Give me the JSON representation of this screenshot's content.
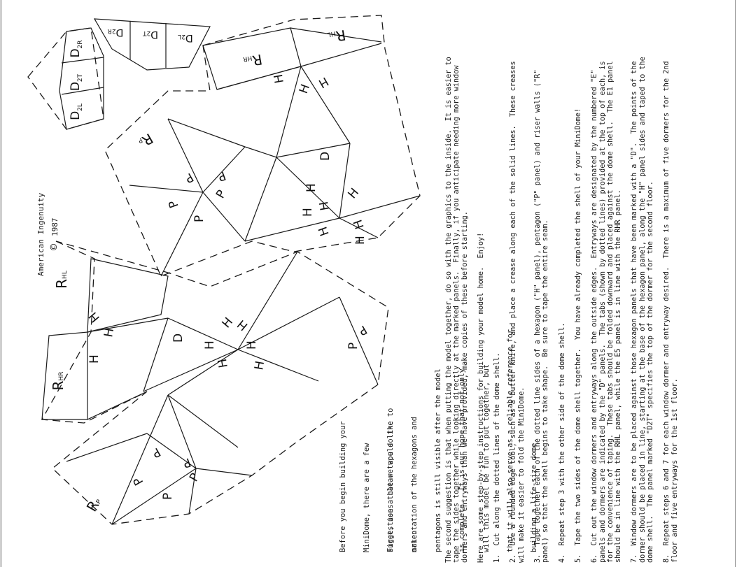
{
  "credit": {
    "company": "American Ingenuity",
    "copyright_symbol": "©",
    "year": "1987"
  },
  "intro": {
    "lines_1": [
      "Before you begin building your",
      "MiniDome, there are a few",
      "suggestions that we would like to",
      "make."
    ],
    "lines_2": [
      "First, use a clear tape so the",
      "orientation of the hexagons and",
      "pentagons is still visible after the model",
      "is complete.  It is our hope that not only",
      "will this model be fun to put together, but",
      "that it will also serve as a reliable reference for",
      "building a life-size dome."
    ]
  },
  "instructions": {
    "suggestion_2": "The second suggestion is that when putting the model together, do so with the graphics to the inside.  It is easier to\ntape the sides together while looking directly at the marked panels.  Finally, if you anticipate needing more window\ndormers and entryways than we have provided, make copies of these before starting.",
    "lead": "Here are some step-by-step instructions for building your model home.  Enjoy!",
    "step_1": "1.  Cut along the dotted lines of the dome shell.",
    "step_2": "2.  Use a rounded edge tool, such as a butter knife, and place a crease along each of the solid lines.  These creases\nwill make it easier to fold the MiniDome.",
    "step_3": "3.  Tape together each of the dotted line sides of a hexagon (\"H\" panel), pentagon (\"P\" panel) and riser walls (\"R\"\npanel) so that the shell begins to take shape.  Be sure to tape the entire seam.",
    "step_4": "4.  Repeat step 3 with the other side of the dome shell.",
    "step_5": "5.  Tape the two sides of the dome shell together.  You have already completed the shell of your MiniDome!",
    "step_6": "6.  Cut out the window dormers and entryways along the outside edges.  Entryways are designated by the numbered \"E\"\npanels and dormers are indicated by the \"D\" panels.  The tabs (shown by dotted lines) provided at the top of each, is\nfor the convenience of taping.  These tabs should be folded downward and placed against the dome shell.  The E1 panel\nshould be in line with the RHL panel, while the E5 panel is in line with the RHR panel.",
    "step_7": "7.  Window dormers are to be placed against those hexagon panels that have been marked with a \"D\".  The points of the\ndormer should be placed in line, starting at the base of the hexagon panel, along the \"H\" panel sides and taped to the\ndome shell.  The panel marked \"D2T\" specifies the top of the dormer for the second floor.",
    "step_8": "8.  Repeat steps 6 and 7 for each window dormer and entryway desired.  There is a maximum of five dormers for the 2nd\nfloor and five entryways for the 1st floor."
  },
  "panel_labels": {
    "hexagon": "H",
    "pentagon": "P",
    "dormer": "D",
    "riser": "R",
    "sub_hl": "HL",
    "sub_hr": "HR",
    "sub_p": "P",
    "d2r": "D2R",
    "d2t": "D2T",
    "d2l": "D2L",
    "sub_2r": "2R",
    "sub_2t": "2T",
    "sub_2l": "2L"
  }
}
